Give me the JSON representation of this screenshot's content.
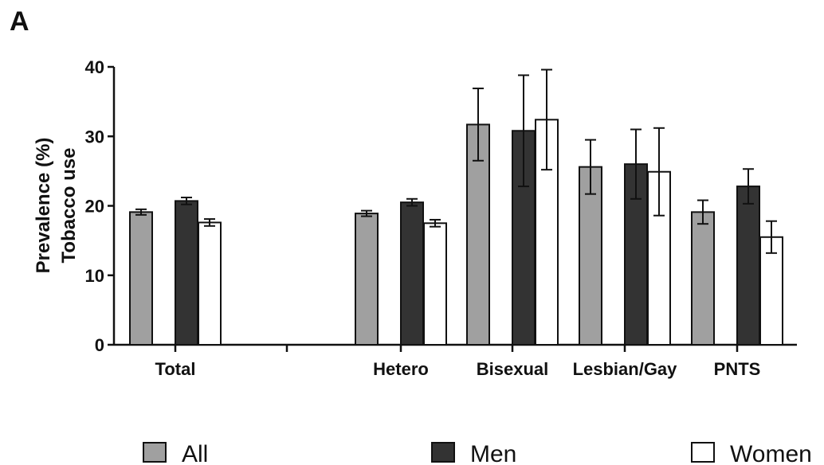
{
  "panel_label": "A",
  "chart_data": {
    "type": "bar",
    "ylabel_lines": [
      "Prevalence (%)",
      "Tobacco use"
    ],
    "ylim": [
      0,
      40
    ],
    "yticks": [
      0,
      10,
      20,
      30,
      40
    ],
    "categories": [
      "Total",
      "Hetero",
      "Bisexual",
      "Lesbian/Gay",
      "PNTS"
    ],
    "series": [
      {
        "name": "All",
        "color": "#a0a0a0",
        "values": [
          19.1,
          18.9,
          31.7,
          25.6,
          19.1
        ],
        "error": [
          0.4,
          0.4,
          5.2,
          3.9,
          1.7
        ]
      },
      {
        "name": "Men",
        "color": "#333333",
        "values": [
          20.7,
          20.5,
          30.8,
          26.0,
          22.8
        ],
        "error": [
          0.5,
          0.5,
          8.0,
          5.0,
          2.5
        ]
      },
      {
        "name": "Women",
        "color": "#ffffff",
        "values": [
          17.6,
          17.5,
          32.4,
          24.9,
          15.5
        ],
        "error": [
          0.5,
          0.5,
          7.2,
          6.3,
          2.3
        ]
      }
    ],
    "grid": false,
    "legend_position": "bottom"
  }
}
